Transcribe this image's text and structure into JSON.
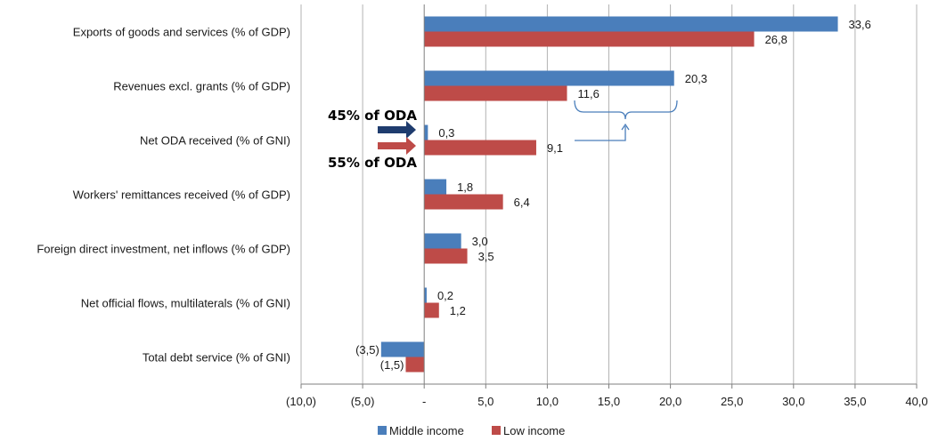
{
  "chart_data": {
    "type": "bar",
    "orientation": "horizontal",
    "categories": [
      "Exports of goods and services (% of GDP)",
      "Revenues excl. grants (% of GDP)",
      "Net ODA received (% of GNI)",
      "Workers' remittances received (% of GDP)",
      "Foreign direct investment, net inflows (% of GDP)",
      "Net official flows, multilaterals (% of GNI)",
      "Total debt service (% of GNI)"
    ],
    "series": [
      {
        "name": "Middle income",
        "color": "#4a7ebb",
        "values": [
          33.6,
          20.3,
          0.3,
          1.8,
          3.0,
          0.2,
          -3.5
        ],
        "labels": [
          "33,6",
          "20,3",
          "0,3",
          "1,8",
          "3,0",
          "0,2",
          "(3,5)"
        ]
      },
      {
        "name": "Low income",
        "color": "#be4b48",
        "values": [
          26.8,
          11.6,
          9.1,
          6.4,
          3.5,
          1.2,
          -1.5
        ],
        "labels": [
          "26,8",
          "11,6",
          "9,1",
          "6,4",
          "3,5",
          "1,2",
          "(1,5)"
        ]
      }
    ],
    "xlim": [
      -10,
      40
    ],
    "xticks": [
      -10,
      -5,
      0,
      5,
      10,
      15,
      20,
      25,
      30,
      35,
      40
    ],
    "xtick_labels": [
      "(10,0)",
      "(5,0)",
      "-",
      "5,0",
      "10,0",
      "15,0",
      "20,0",
      "25,0",
      "30,0",
      "35,0",
      "40,0"
    ],
    "grid": "vertical",
    "legend_position": "bottom",
    "annotations": [
      {
        "text": "45% of ODA",
        "color": "#1f3c6e"
      },
      {
        "text": "55% of ODA",
        "color": "#be4b48"
      }
    ]
  }
}
